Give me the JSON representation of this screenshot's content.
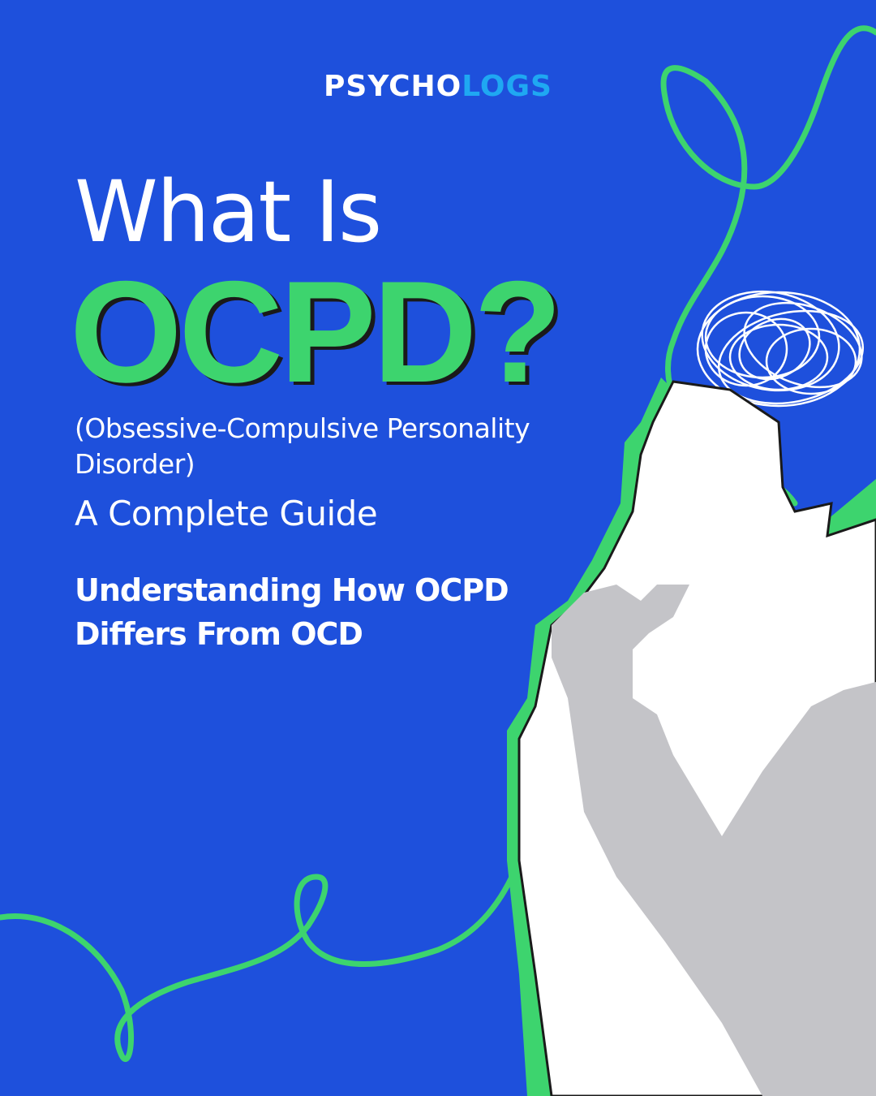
{
  "logo": {
    "part1": "PSYCHO",
    "part2": "LOGS"
  },
  "title": {
    "line1": "What Is",
    "line2": "OCPD?"
  },
  "subtitle": "(Obsessive-Compulsive Personality Disorder)",
  "guide": "A Complete Guide",
  "tagline": "Understanding How OCPD Differs From OCD",
  "colors": {
    "background": "#1e50dc",
    "accent": "#3dd46e",
    "logo_accent": "#1fa8f2",
    "silhouette": "#ffffff",
    "arm": "#c4c4c8"
  }
}
